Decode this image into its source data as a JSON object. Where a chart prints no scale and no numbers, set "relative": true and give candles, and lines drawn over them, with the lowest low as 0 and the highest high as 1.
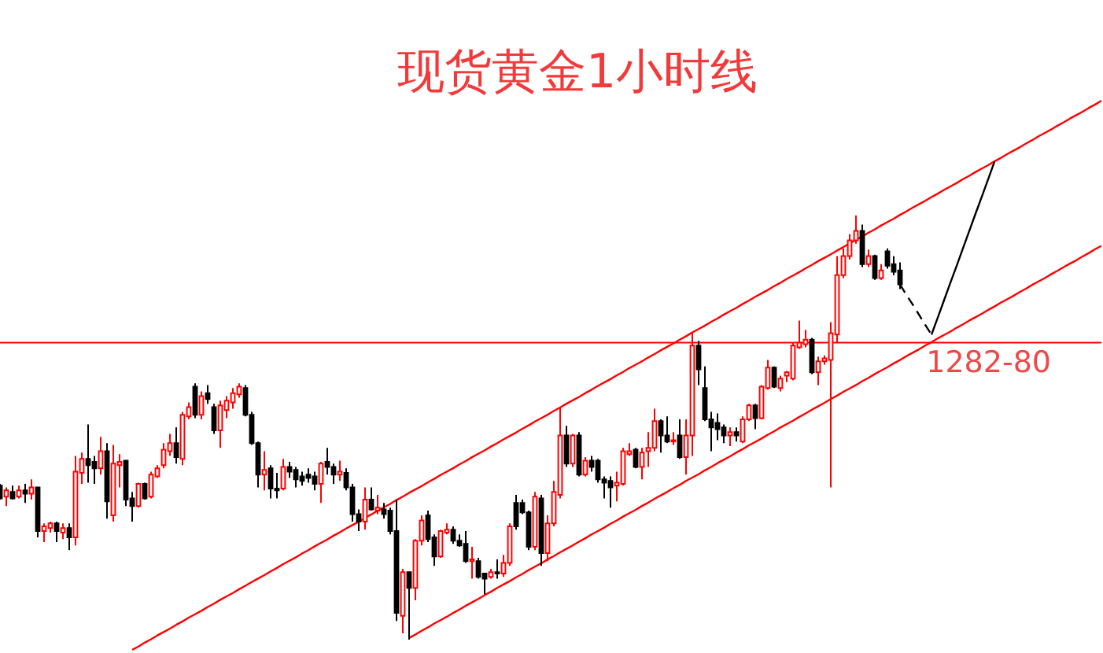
{
  "chart_data": {
    "type": "candlestick",
    "title": "现货黄金1小时线",
    "relative": true,
    "tick_labels": false,
    "categories": [
      null,
      null,
      null,
      null,
      null,
      null,
      null,
      null,
      null,
      null,
      null,
      null,
      null,
      null,
      null,
      null,
      null,
      null,
      null,
      null,
      null,
      null,
      null,
      null,
      null,
      null,
      null,
      null,
      null,
      null,
      null,
      null,
      null,
      null,
      null,
      null,
      null,
      null,
      null,
      null,
      null,
      null,
      null,
      null,
      null,
      null,
      null,
      null,
      null,
      null,
      null,
      null,
      null,
      null,
      null,
      null,
      null,
      null,
      null,
      null,
      null,
      null,
      null,
      null,
      null,
      null,
      null,
      null,
      null,
      null,
      null,
      null,
      null,
      null,
      null,
      null,
      null,
      null,
      null,
      null,
      null,
      null,
      null,
      null,
      null,
      null,
      null,
      null,
      null,
      null,
      null,
      null,
      null,
      null,
      null,
      null,
      null,
      null,
      null,
      null,
      null,
      null,
      null,
      null,
      null,
      null,
      null,
      null,
      null,
      null,
      null,
      null,
      null,
      null,
      null,
      null,
      null,
      null,
      null,
      null,
      null,
      null,
      null,
      null,
      null,
      null,
      null,
      null,
      null,
      null,
      null,
      null,
      null,
      null,
      null,
      null,
      null,
      null,
      null,
      null,
      null,
      null,
      null,
      null,
      null,
      null,
      null,
      null,
      null,
      null,
      null,
      null,
      null,
      null,
      null,
      null,
      null,
      null,
      null,
      null,
      null,
      null,
      null,
      null,
      null,
      null,
      null,
      null,
      null,
      null,
      null,
      null,
      null,
      null,
      null,
      null
    ],
    "ohlc": [
      [
        0.363,
        0.367,
        0.33,
        0.333
      ],
      [
        0.337,
        0.359,
        0.315,
        0.352
      ],
      [
        0.348,
        0.363,
        0.33,
        0.333
      ],
      [
        0.337,
        0.363,
        0.333,
        0.352
      ],
      [
        0.352,
        0.367,
        0.322,
        0.344
      ],
      [
        0.344,
        0.378,
        0.33,
        0.359
      ],
      [
        0.359,
        0.359,
        0.241,
        0.256
      ],
      [
        0.256,
        0.274,
        0.23,
        0.267
      ],
      [
        0.263,
        0.278,
        0.252,
        0.274
      ],
      [
        0.274,
        0.278,
        0.23,
        0.256
      ],
      [
        0.252,
        0.274,
        0.237,
        0.263
      ],
      [
        0.263,
        0.274,
        0.211,
        0.241
      ],
      [
        0.241,
        0.433,
        0.222,
        0.396
      ],
      [
        0.393,
        0.441,
        0.367,
        0.426
      ],
      [
        0.426,
        0.507,
        0.37,
        0.411
      ],
      [
        0.419,
        0.433,
        0.367,
        0.404
      ],
      [
        0.404,
        0.478,
        0.389,
        0.444
      ],
      [
        0.444,
        0.463,
        0.285,
        0.326
      ],
      [
        0.293,
        0.459,
        0.278,
        0.415
      ],
      [
        0.411,
        0.437,
        0.359,
        0.419
      ],
      [
        0.422,
        0.422,
        0.315,
        0.33
      ],
      [
        0.333,
        0.348,
        0.278,
        0.315
      ],
      [
        0.315,
        0.37,
        0.311,
        0.367
      ],
      [
        0.367,
        0.37,
        0.33,
        0.333
      ],
      [
        0.337,
        0.396,
        0.333,
        0.389
      ],
      [
        0.385,
        0.411,
        0.381,
        0.404
      ],
      [
        0.411,
        0.463,
        0.404,
        0.448
      ],
      [
        0.444,
        0.485,
        0.433,
        0.463
      ],
      [
        0.463,
        0.5,
        0.415,
        0.43
      ],
      [
        0.426,
        0.537,
        0.411,
        0.53
      ],
      [
        0.526,
        0.559,
        0.519,
        0.548
      ],
      [
        0.596,
        0.604,
        0.522,
        0.53
      ],
      [
        0.53,
        0.585,
        0.519,
        0.574
      ],
      [
        0.581,
        0.6,
        0.556,
        0.567
      ],
      [
        0.548,
        0.556,
        0.485,
        0.493
      ],
      [
        0.493,
        0.563,
        0.452,
        0.552
      ],
      [
        0.541,
        0.574,
        0.522,
        0.563
      ],
      [
        0.559,
        0.593,
        0.544,
        0.581
      ],
      [
        0.578,
        0.604,
        0.57,
        0.596
      ],
      [
        0.593,
        0.6,
        0.526,
        0.53
      ],
      [
        0.53,
        0.537,
        0.459,
        0.463
      ],
      [
        0.463,
        0.467,
        0.359,
        0.389
      ],
      [
        0.389,
        0.444,
        0.352,
        0.4
      ],
      [
        0.404,
        0.411,
        0.333,
        0.356
      ],
      [
        0.356,
        0.393,
        0.333,
        0.352
      ],
      [
        0.356,
        0.426,
        0.352,
        0.407
      ],
      [
        0.407,
        0.419,
        0.381,
        0.396
      ],
      [
        0.4,
        0.407,
        0.359,
        0.378
      ],
      [
        0.385,
        0.396,
        0.363,
        0.374
      ],
      [
        0.389,
        0.404,
        0.37,
        0.381
      ],
      [
        0.385,
        0.396,
        0.352,
        0.367
      ],
      [
        0.367,
        0.419,
        0.322,
        0.415
      ],
      [
        0.419,
        0.452,
        0.389,
        0.407
      ],
      [
        0.407,
        0.415,
        0.367,
        0.389
      ],
      [
        0.389,
        0.422,
        0.374,
        0.396
      ],
      [
        0.393,
        0.404,
        0.352,
        0.359
      ],
      [
        0.359,
        0.367,
        0.278,
        0.296
      ],
      [
        0.296,
        0.307,
        0.256,
        0.278
      ],
      [
        0.278,
        0.359,
        0.259,
        0.33
      ],
      [
        0.33,
        0.359,
        0.304,
        0.307
      ],
      [
        0.304,
        0.341,
        0.296,
        0.311
      ],
      [
        0.307,
        0.322,
        0.285,
        0.296
      ],
      [
        0.304,
        0.311,
        0.248,
        0.256
      ],
      [
        0.256,
        0.33,
        0.044,
        0.063
      ],
      [
        0.056,
        0.167,
        0.015,
        0.159
      ],
      [
        0.159,
        0.159,
        0,
        0.122
      ],
      [
        0.122,
        0.237,
        0.093,
        0.233
      ],
      [
        0.233,
        0.293,
        0.222,
        0.281
      ],
      [
        0.293,
        0.304,
        0.23,
        0.237
      ],
      [
        0.241,
        0.248,
        0.174,
        0.196
      ],
      [
        0.196,
        0.259,
        0.193,
        0.256
      ],
      [
        0.252,
        0.274,
        0.248,
        0.259
      ],
      [
        0.259,
        0.267,
        0.226,
        0.233
      ],
      [
        0.233,
        0.248,
        0.219,
        0.222
      ],
      [
        0.226,
        0.256,
        0.181,
        0.185
      ],
      [
        0.185,
        0.219,
        0.144,
        0.189
      ],
      [
        0.185,
        0.193,
        0.144,
        0.148
      ],
      [
        0.156,
        0.156,
        0.107,
        0.144
      ],
      [
        0.148,
        0.167,
        0.144,
        0.159
      ],
      [
        0.159,
        0.189,
        0.144,
        0.156
      ],
      [
        0.156,
        0.2,
        0.148,
        0.181
      ],
      [
        0.181,
        0.274,
        0.174,
        0.267
      ],
      [
        0.322,
        0.341,
        0.259,
        0.267
      ],
      [
        0.322,
        0.33,
        0.296,
        0.3
      ],
      [
        0.3,
        0.304,
        0.211,
        0.219
      ],
      [
        0.219,
        0.348,
        0.211,
        0.337
      ],
      [
        0.333,
        0.341,
        0.174,
        0.204
      ],
      [
        0.204,
        0.293,
        0.185,
        0.274
      ],
      [
        0.274,
        0.374,
        0.267,
        0.348
      ],
      [
        0.341,
        0.548,
        0.333,
        0.481
      ],
      [
        0.481,
        0.504,
        0.407,
        0.415
      ],
      [
        0.415,
        0.485,
        0.407,
        0.481
      ],
      [
        0.481,
        0.489,
        0.385,
        0.389
      ],
      [
        0.389,
        0.43,
        0.385,
        0.422
      ],
      [
        0.422,
        0.433,
        0.396,
        0.407
      ],
      [
        0.422,
        0.426,
        0.37,
        0.378
      ],
      [
        0.378,
        0.385,
        0.333,
        0.37
      ],
      [
        0.374,
        0.385,
        0.311,
        0.359
      ],
      [
        0.363,
        0.396,
        0.326,
        0.37
      ],
      [
        0.367,
        0.452,
        0.363,
        0.444
      ],
      [
        0.437,
        0.463,
        0.433,
        0.444
      ],
      [
        0.448,
        0.452,
        0.404,
        0.407
      ],
      [
        0.407,
        0.452,
        0.378,
        0.441
      ],
      [
        0.444,
        0.489,
        0.407,
        0.452
      ],
      [
        0.452,
        0.544,
        0.444,
        0.515
      ],
      [
        0.515,
        0.519,
        0.441,
        0.481
      ],
      [
        0.481,
        0.526,
        0.463,
        0.467
      ],
      [
        0.467,
        0.489,
        0.459,
        0.47
      ],
      [
        0.481,
        0.519,
        0.426,
        0.43
      ],
      [
        0.43,
        0.519,
        0.389,
        0.481
      ],
      [
        0.481,
        0.722,
        0.433,
        0.693
      ],
      [
        0.693,
        0.704,
        0.6,
        0.637
      ],
      [
        0.593,
        0.644,
        0.515,
        0.519
      ],
      [
        0.519,
        0.537,
        0.444,
        0.5
      ],
      [
        0.511,
        0.533,
        0.47,
        0.496
      ],
      [
        0.5,
        0.507,
        0.463,
        0.481
      ],
      [
        0.481,
        0.5,
        0.456,
        0.489
      ],
      [
        0.489,
        0.5,
        0.467,
        0.481
      ],
      [
        0.467,
        0.526,
        0.463,
        0.519
      ],
      [
        0.519,
        0.556,
        0.515,
        0.552
      ],
      [
        0.552,
        0.556,
        0.496,
        0.522
      ],
      [
        0.522,
        0.6,
        0.519,
        0.596
      ],
      [
        0.593,
        0.659,
        0.589,
        0.641
      ],
      [
        0.641,
        0.644,
        0.593,
        0.596
      ],
      [
        0.593,
        0.622,
        0.585,
        0.615
      ],
      [
        0.622,
        0.633,
        0.607,
        0.63
      ],
      [
        0.615,
        0.7,
        0.611,
        0.693
      ],
      [
        0.689,
        0.752,
        0.685,
        0.7
      ],
      [
        0.696,
        0.73,
        0.689,
        0.707
      ],
      [
        0.707,
        0.711,
        0.626,
        0.63
      ],
      [
        0.63,
        0.667,
        0.6,
        0.656
      ],
      [
        0.656,
        0.67,
        0.648,
        0.663
      ],
      [
        0.659,
        0.748,
        0.359,
        0.722
      ],
      [
        0.719,
        0.904,
        0.7,
        0.859
      ],
      [
        0.859,
        0.922,
        0.852,
        0.904
      ],
      [
        0.904,
        0.956,
        0.896,
        0.941
      ],
      [
        0.941,
        1,
        0.933,
        0.963
      ],
      [
        0.963,
        0.978,
        0.878,
        0.885
      ],
      [
        0.885,
        0.919,
        0.878,
        0.904
      ],
      [
        0.904,
        0.907,
        0.848,
        0.852
      ],
      [
        0.852,
        0.885,
        0.848,
        0.87
      ],
      [
        0.915,
        0.922,
        0.874,
        0.881
      ],
      [
        0.885,
        0.904,
        0.859,
        0.867
      ],
      [
        0.87,
        0.889,
        0.826,
        0.837
      ],
      null,
      null,
      null,
      null,
      null,
      null,
      null,
      null,
      null,
      null,
      null,
      null,
      null,
      null,
      null,
      null,
      null,
      null,
      null,
      null,
      null,
      null,
      null,
      null,
      null,
      null,
      null,
      null,
      null,
      null,
      null,
      null
    ],
    "colors": [
      "#000000",
      "#ff0000",
      "#000000",
      "#ff0000",
      "#000000",
      "#ff0000",
      "#000000",
      "#ff0000",
      "#ff0000",
      "#000000",
      "#ff0000",
      "#000000",
      "#ff0000",
      "#ff0000",
      "#000000",
      "#000000",
      "#ff0000",
      "#000000",
      "#ff0000",
      "#ff0000",
      "#000000",
      "#000000",
      "#ff0000",
      "#000000",
      "#ff0000",
      "#ff0000",
      "#ff0000",
      "#ff0000",
      "#000000",
      "#ff0000",
      "#ff0000",
      "#000000",
      "#ff0000",
      "#000000",
      "#000000",
      "#ff0000",
      "#ff0000",
      "#ff0000",
      "#ff0000",
      "#000000",
      "#000000",
      "#000000",
      "#ff0000",
      "#000000",
      "#000000",
      "#ff0000",
      "#000000",
      "#000000",
      "#000000",
      "#000000",
      "#000000",
      "#ff0000",
      "#000000",
      "#000000",
      "#ff0000",
      "#000000",
      "#000000",
      "#000000",
      "#ff0000",
      "#000000",
      "#ff0000",
      "#000000",
      "#000000",
      "#000000",
      "#ff0000",
      "#000000",
      "#ff0000",
      "#ff0000",
      "#000000",
      "#000000",
      "#ff0000",
      "#ff0000",
      "#000000",
      "#000000",
      "#000000",
      "#ff0000",
      "#000000",
      "#000000",
      "#ff0000",
      "#000000",
      "#ff0000",
      "#ff0000",
      "#000000",
      "#000000",
      "#000000",
      "#ff0000",
      "#000000",
      "#ff0000",
      "#ff0000",
      "#ff0000",
      "#000000",
      "#ff0000",
      "#000000",
      "#ff0000",
      "#000000",
      "#000000",
      "#000000",
      "#000000",
      "#ff0000",
      "#ff0000",
      "#ff0000",
      "#000000",
      "#ff0000",
      "#ff0000",
      "#ff0000",
      "#000000",
      "#000000",
      "#ff0000",
      "#000000",
      "#ff0000",
      "#ff0000",
      "#000000",
      "#000000",
      "#000000",
      "#000000",
      "#000000",
      "#ff0000",
      "#000000",
      "#ff0000",
      "#ff0000",
      "#000000",
      "#ff0000",
      "#ff0000",
      "#000000",
      "#ff0000",
      "#ff0000",
      "#ff0000",
      "#ff0000",
      "#ff0000",
      "#000000",
      "#ff0000",
      "#ff0000",
      "#ff0000",
      "#ff0000",
      "#ff0000",
      "#ff0000",
      "#ff0000",
      "#000000",
      "#ff0000",
      "#000000",
      "#ff0000",
      "#000000",
      "#000000",
      "#000000",
      null,
      null,
      null,
      null,
      null,
      null,
      null,
      null,
      null,
      null,
      null,
      null,
      null,
      null,
      null,
      null,
      null,
      null,
      null,
      null,
      null,
      null,
      null,
      null,
      null,
      null,
      null,
      null,
      null,
      null,
      null,
      null
    ],
    "series": [
      {
        "type": "line",
        "color": "#ff0000",
        "values": [
          null,
          null,
          null,
          null,
          null,
          null,
          null,
          null,
          null,
          null,
          null,
          null,
          null,
          null,
          null,
          null,
          null,
          null,
          null,
          null,
          null,
          -0.024,
          -0.016,
          -0.007,
          0.001,
          0.01,
          0.018,
          0.026,
          0.035,
          0.043,
          0.052,
          0.06,
          0.068,
          0.077,
          0.085,
          0.094,
          0.102,
          0.11,
          0.119,
          0.127,
          0.136,
          0.144,
          0.152,
          0.161,
          0.169,
          0.178,
          0.186,
          0.194,
          0.203,
          0.211,
          0.22,
          0.228,
          0.236,
          0.245,
          0.253,
          0.262,
          0.27,
          0.278,
          0.287,
          0.295,
          0.304,
          0.312,
          0.32,
          0.329,
          0.337,
          0.346,
          0.354,
          0.362,
          0.371,
          0.379,
          0.388,
          0.396,
          0.404,
          0.413,
          0.421,
          0.43,
          0.438,
          0.446,
          0.455,
          0.463,
          0.472,
          0.48,
          0.488,
          0.497,
          0.505,
          0.514,
          0.522,
          0.53,
          0.539,
          0.547,
          0.556,
          0.564,
          0.572,
          0.581,
          0.589,
          0.598,
          0.606,
          0.614,
          0.623,
          0.631,
          0.64,
          0.648,
          0.656,
          0.665,
          0.673,
          0.682,
          0.69,
          0.698,
          0.707,
          0.715,
          0.724,
          0.732,
          0.74,
          0.749,
          0.757,
          0.766,
          0.774,
          0.782,
          0.791,
          0.799,
          0.808,
          0.816,
          0.824,
          0.833,
          0.841,
          0.85,
          0.858,
          0.866,
          0.875,
          0.883,
          0.892,
          0.9,
          0.908,
          0.917,
          0.925,
          0.934,
          0.942,
          0.95,
          0.959,
          0.967,
          0.976,
          0.984,
          0.992,
          1.001,
          1.009,
          1.018,
          1.026,
          1.034,
          1.043,
          1.051,
          1.06,
          1.068,
          1.076,
          1.085,
          1.093,
          1.102,
          1.11,
          1.118,
          1.127,
          1.135,
          1.144,
          1.152,
          1.16,
          1.169,
          1.177,
          1.186,
          1.194,
          1.202,
          1.211,
          1.219,
          1.228,
          1.236,
          1.244,
          1.253,
          1.261,
          1.27
        ]
      },
      {
        "type": "line",
        "color": "#ff0000",
        "values": [
          null,
          null,
          null,
          null,
          null,
          null,
          null,
          null,
          null,
          null,
          null,
          null,
          null,
          null,
          null,
          null,
          null,
          null,
          null,
          null,
          null,
          null,
          null,
          null,
          null,
          null,
          null,
          null,
          null,
          null,
          null,
          null,
          null,
          null,
          null,
          null,
          null,
          null,
          null,
          null,
          null,
          null,
          null,
          null,
          null,
          null,
          null,
          null,
          null,
          null,
          null,
          null,
          null,
          null,
          null,
          null,
          null,
          null,
          null,
          null,
          null,
          null,
          null,
          null,
          null,
          0.004,
          0.012,
          0.021,
          0.029,
          0.038,
          0.046,
          0.054,
          0.063,
          0.071,
          0.08,
          0.088,
          0.096,
          0.105,
          0.113,
          0.122,
          0.13,
          0.138,
          0.147,
          0.155,
          0.164,
          0.172,
          0.18,
          0.189,
          0.197,
          0.206,
          0.214,
          0.222,
          0.231,
          0.239,
          0.248,
          0.256,
          0.264,
          0.273,
          0.281,
          0.29,
          0.298,
          0.306,
          0.315,
          0.323,
          0.332,
          0.34,
          0.348,
          0.357,
          0.365,
          0.374,
          0.382,
          0.39,
          0.399,
          0.407,
          0.416,
          0.424,
          0.432,
          0.441,
          0.449,
          0.458,
          0.466,
          0.474,
          0.483,
          0.491,
          0.5,
          0.508,
          0.516,
          0.525,
          0.533,
          0.542,
          0.55,
          0.558,
          0.567,
          0.575,
          0.584,
          0.592,
          0.6,
          0.609,
          0.617,
          0.626,
          0.634,
          0.642,
          0.651,
          0.659,
          0.668,
          0.676,
          0.684,
          0.693,
          0.701,
          0.71,
          0.718,
          0.726,
          0.735,
          0.743,
          0.752,
          0.76,
          0.768,
          0.777,
          0.785,
          0.794,
          0.802,
          0.81,
          0.819,
          0.827,
          0.836,
          0.844,
          0.852,
          0.861,
          0.869,
          0.878,
          0.886,
          0.894,
          0.903,
          0.911,
          0.92,
          0.928
        ]
      },
      {
        "type": "line",
        "color": "#000000",
        "line_style": "dashed",
        "values": [
          null,
          null,
          null,
          null,
          null,
          null,
          null,
          null,
          null,
          null,
          null,
          null,
          null,
          null,
          null,
          null,
          null,
          null,
          null,
          null,
          null,
          null,
          null,
          null,
          null,
          null,
          null,
          null,
          null,
          null,
          null,
          null,
          null,
          null,
          null,
          null,
          null,
          null,
          null,
          null,
          null,
          null,
          null,
          null,
          null,
          null,
          null,
          null,
          null,
          null,
          null,
          null,
          null,
          null,
          null,
          null,
          null,
          null,
          null,
          null,
          null,
          null,
          null,
          null,
          null,
          null,
          null,
          null,
          null,
          null,
          null,
          null,
          null,
          null,
          null,
          null,
          null,
          null,
          null,
          null,
          null,
          null,
          null,
          null,
          null,
          null,
          null,
          null,
          null,
          null,
          null,
          null,
          null,
          null,
          null,
          null,
          null,
          null,
          null,
          null,
          null,
          null,
          null,
          null,
          null,
          null,
          null,
          null,
          null,
          null,
          null,
          null,
          null,
          null,
          null,
          null,
          null,
          null,
          null,
          null,
          null,
          null,
          null,
          null,
          null,
          null,
          null,
          null,
          null,
          null,
          null,
          null,
          null,
          null,
          null,
          null,
          null,
          null,
          null,
          null,
          null,
          null,
          null,
          0.837,
          0.813,
          0.79,
          0.766,
          0.742,
          0.719,
          null,
          null,
          null,
          null,
          null,
          null,
          null,
          null,
          null,
          null,
          null,
          null,
          null,
          null,
          null,
          null,
          null,
          null,
          null,
          null,
          null,
          null,
          null,
          null,
          null,
          null,
          null
        ]
      },
      {
        "type": "line",
        "color": "#000000",
        "values": [
          null,
          null,
          null,
          null,
          null,
          null,
          null,
          null,
          null,
          null,
          null,
          null,
          null,
          null,
          null,
          null,
          null,
          null,
          null,
          null,
          null,
          null,
          null,
          null,
          null,
          null,
          null,
          null,
          null,
          null,
          null,
          null,
          null,
          null,
          null,
          null,
          null,
          null,
          null,
          null,
          null,
          null,
          null,
          null,
          null,
          null,
          null,
          null,
          null,
          null,
          null,
          null,
          null,
          null,
          null,
          null,
          null,
          null,
          null,
          null,
          null,
          null,
          null,
          null,
          null,
          null,
          null,
          null,
          null,
          null,
          null,
          null,
          null,
          null,
          null,
          null,
          null,
          null,
          null,
          null,
          null,
          null,
          null,
          null,
          null,
          null,
          null,
          null,
          null,
          null,
          null,
          null,
          null,
          null,
          null,
          null,
          null,
          null,
          null,
          null,
          null,
          null,
          null,
          null,
          null,
          null,
          null,
          null,
          null,
          null,
          null,
          null,
          null,
          null,
          null,
          null,
          null,
          null,
          null,
          null,
          null,
          null,
          null,
          null,
          null,
          null,
          null,
          null,
          null,
          null,
          null,
          null,
          null,
          null,
          null,
          null,
          null,
          null,
          null,
          null,
          null,
          null,
          null,
          null,
          null,
          null,
          null,
          null,
          0.719,
          0.759,
          0.8,
          0.841,
          0.881,
          0.922,
          0.963,
          1.004,
          1.044,
          1.085,
          1.126,
          null,
          null,
          null,
          null,
          null,
          null,
          null,
          null,
          null,
          null,
          null,
          null,
          null,
          null,
          null,
          null,
          null
        ]
      }
    ],
    "ref_lines": [
      {
        "axis": "y",
        "value": 0.7,
        "color": "#ff0000"
      }
    ],
    "annotations": [
      {
        "text": "1282-80",
        "y": 0.7
      }
    ]
  }
}
